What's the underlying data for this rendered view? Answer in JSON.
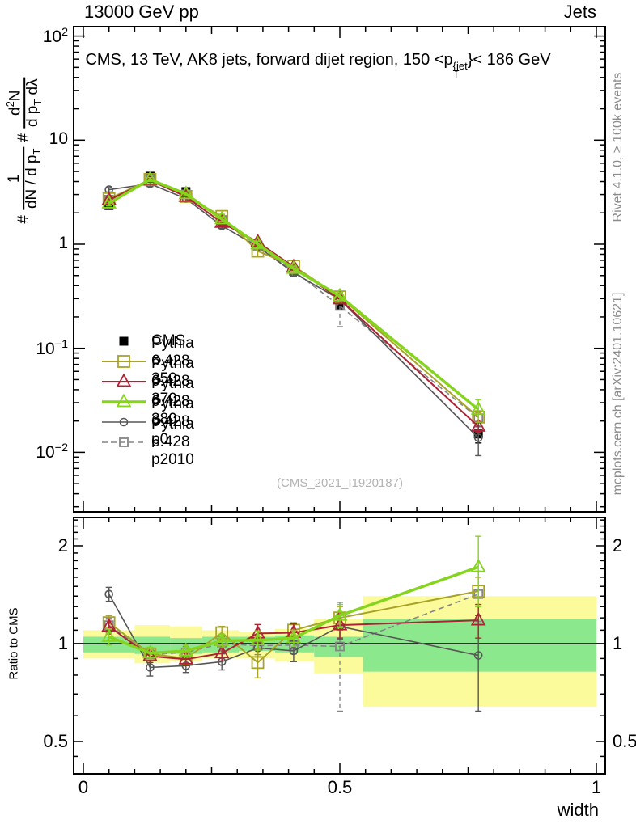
{
  "header": {
    "left": "13000 GeV pp",
    "right": "Jets"
  },
  "title": {
    "prefix": "CMS, 13 TeV, AK8 jets, forward dijet region, 150 <p",
    "sup": "{jet",
    "sub": "T",
    "suffix": "}< 186 GeV"
  },
  "ylabel": {
    "hash1": "#",
    "frac1_num": "1",
    "frac1_den_a": "dN / d p",
    "frac1_den_sub": "T",
    "hash2": "#",
    "frac2_num_a": "d",
    "frac2_num_sup": "2",
    "frac2_num_b": "N",
    "frac2_den_a": "d p",
    "frac2_den_sub": "T",
    "frac2_den_b": " dλ"
  },
  "ratio_ylabel": "Ratio to CMS",
  "xlabel": "width",
  "side_texts": {
    "top_right": "Rivet 4.1.0, ≥ 100k events",
    "bottom_right": "mcplots.cern.ch [arXiv:2401.10621]"
  },
  "watermark": "(CMS_2021_I1920187)",
  "colors": {
    "cms": "#000000",
    "pythia_350": "#a8a428",
    "pythia_370": "#ac2333",
    "pythia_380": "#85d41e",
    "pythia_p0": "#565656",
    "pythia_p2010": "#858585",
    "band_yellow": "#fbfb9b",
    "band_green": "#8ce88c"
  },
  "chart_data": {
    "type": "line",
    "title": "CMS, 13 TeV, AK8 jets, forward dijet region, 150 <p_T^{jet}< 186 GeV",
    "xlabel": "width",
    "ylabel": "# 1/(dN/dp_T) # d2N/(dp_T dlambda)",
    "ratio_ylabel": "Ratio to CMS",
    "x_axis": {
      "min": 0,
      "max": 1,
      "ticks": [
        {
          "label": "0",
          "value": 0
        },
        {
          "label": "0.5",
          "value": 0.5
        },
        {
          "label": "1",
          "value": 1
        }
      ]
    },
    "y_axis": {
      "log": true,
      "min": 0.0028,
      "max": 120,
      "ticks": [
        {
          "base": "10",
          "exp": "2",
          "value": 100
        },
        {
          "base": "10",
          "exp": "",
          "value": 10
        },
        {
          "base": "1",
          "exp": "",
          "value": 1
        },
        {
          "base": "10",
          "exp": "−1",
          "value": 0.1
        },
        {
          "base": "10",
          "exp": "−2",
          "value": 0.01
        }
      ]
    },
    "ratio_axis": {
      "log": true,
      "min": 0.4,
      "max": 2.44,
      "ticks": [
        {
          "label": "2",
          "value": 2
        },
        {
          "label": "1",
          "value": 1
        },
        {
          "label": "0.5",
          "value": 0.5
        }
      ]
    },
    "x": [
      0.05,
      0.13,
      0.2,
      0.27,
      0.34,
      0.41,
      0.5,
      0.77
    ],
    "series": [
      {
        "key": "cms",
        "name": "CMS",
        "marker": "square-filled",
        "line": false,
        "lw": 0,
        "values": [
          2.35,
          4.5,
          3.2,
          1.71,
          0.98,
          0.56,
          0.26,
          0.015
        ],
        "ratio": null,
        "main_err_frac": [
          0.03,
          0.02,
          0.02,
          0.025,
          0.03,
          0.04,
          0.06,
          0.18
        ]
      },
      {
        "key": "pythia_p2010",
        "name": "Pythia 6.428 p2010",
        "marker": "square-open",
        "line": true,
        "lw": 1.6,
        "dash": "7,4",
        "values": [
          2.68,
          4.16,
          3.01,
          1.71,
          0.965,
          0.554,
          0.255,
          0.0213
        ],
        "ratio": [
          1.14,
          0.925,
          0.94,
          1.0,
          0.985,
          0.99,
          0.98,
          1.42
        ],
        "rerr": [
          0.06,
          0.04,
          0.04,
          0.05,
          0.06,
          0.06,
          0.36,
          0.25
        ]
      },
      {
        "key": "pythia_p0",
        "name": "Pythia 6.428 p0",
        "marker": "circle-open",
        "line": true,
        "lw": 1.6,
        "values": [
          3.34,
          3.8,
          2.74,
          1.5,
          0.95,
          0.532,
          0.294,
          0.0138
        ],
        "ratio": [
          1.42,
          0.845,
          0.855,
          0.88,
          0.97,
          0.95,
          1.13,
          0.92
        ],
        "rerr": [
          0.07,
          0.05,
          0.04,
          0.05,
          0.06,
          0.07,
          0.1,
          0.3
        ]
      },
      {
        "key": "pythia_350",
        "name": "Pythia 6.428 350",
        "marker": "square-open",
        "line": true,
        "lw": 2,
        "values": [
          2.73,
          4.19,
          2.88,
          1.85,
          0.858,
          0.616,
          0.312,
          0.0218
        ],
        "ratio": [
          1.16,
          0.93,
          0.9,
          1.08,
          0.875,
          1.1,
          1.2,
          1.45
        ],
        "rerr": [
          0.06,
          0.04,
          0.04,
          0.05,
          0.09,
          0.06,
          0.1,
          0.15
        ]
      },
      {
        "key": "pythia_370",
        "name": "Pythia 6.428 370",
        "marker": "triangle-open",
        "line": true,
        "lw": 2,
        "values": [
          2.66,
          4.12,
          2.86,
          1.61,
          1.05,
          0.605,
          0.296,
          0.0177
        ],
        "ratio": [
          1.13,
          0.915,
          0.895,
          0.935,
          1.075,
          1.08,
          1.14,
          1.18
        ],
        "rerr": [
          0.06,
          0.04,
          0.04,
          0.05,
          0.07,
          0.07,
          0.1,
          0.14
        ]
      },
      {
        "key": "pythia_380",
        "name": "Pythia 6.428 380",
        "marker": "triangle-open",
        "line": true,
        "lw": 3.5,
        "values": [
          2.47,
          4.19,
          3.04,
          1.74,
          1.0,
          0.582,
          0.317,
          0.0258
        ],
        "ratio": [
          1.05,
          0.935,
          0.95,
          1.02,
          1.025,
          1.04,
          1.22,
          1.72
        ],
        "rerr": [
          0.06,
          0.04,
          0.04,
          0.05,
          0.07,
          0.06,
          0.1,
          0.42
        ]
      }
    ],
    "legend_order": [
      "cms",
      "pythia_350",
      "pythia_370",
      "pythia_380",
      "pythia_p0",
      "pythia_p2010"
    ],
    "ratio_bands": {
      "edges": [
        0,
        0.1,
        0.169,
        0.232,
        0.303,
        0.374,
        0.45,
        0.545,
        1.0
      ],
      "yellow": [
        [
          0.9,
          1.1
        ],
        [
          0.87,
          1.14
        ],
        [
          0.88,
          1.13
        ],
        [
          0.9,
          1.1
        ],
        [
          0.9,
          1.09
        ],
        [
          0.88,
          1.11
        ],
        [
          0.81,
          1.19
        ],
        [
          0.64,
          1.4
        ]
      ],
      "green": [
        [
          0.94,
          1.05
        ],
        [
          0.93,
          1.05
        ],
        [
          0.93,
          1.04
        ],
        [
          0.94,
          1.05
        ],
        [
          0.95,
          1.05
        ],
        [
          0.94,
          1.06
        ],
        [
          0.91,
          1.05
        ],
        [
          0.82,
          1.19
        ]
      ]
    },
    "legend_position": "middle-left",
    "grid": false
  }
}
